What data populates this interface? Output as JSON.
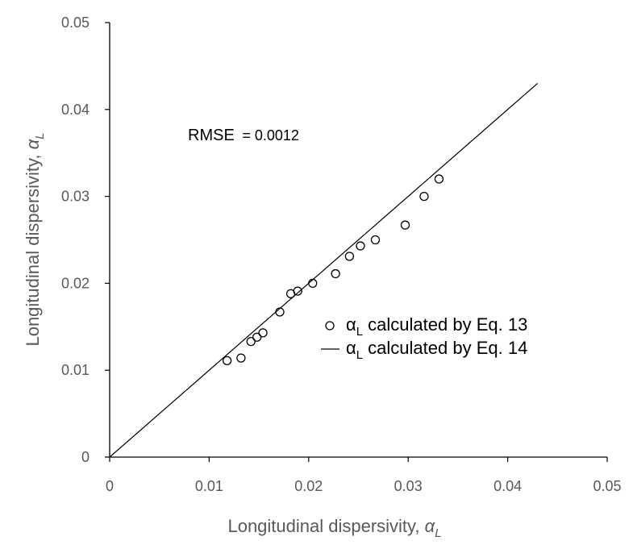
{
  "chart_data": {
    "type": "scatter",
    "title": "",
    "xlabel": "Longitudinal dispersivity, ",
    "xlabel_symbol": "α",
    "xlabel_sub": "L",
    "ylabel": "Longitudinal dispersivity, ",
    "ylabel_symbol": "α",
    "ylabel_sub": "L",
    "xlim": [
      0,
      0.05
    ],
    "ylim": [
      0,
      0.05
    ],
    "xticks": [
      0,
      0.01,
      0.02,
      0.03,
      0.04,
      0.05
    ],
    "yticks": [
      0,
      0.01,
      0.02,
      0.03,
      0.04,
      0.05
    ],
    "xtick_labels": [
      "0",
      "0.01",
      "0.02",
      "0.03",
      "0.04",
      "0.05"
    ],
    "ytick_labels": [
      "0",
      "0.01",
      "0.02",
      "0.03",
      "0.04",
      "0.05"
    ],
    "grid": false,
    "annotation": {
      "rmse_label": "RMSE",
      "rmse_value": "= 0.0012"
    },
    "legend": {
      "position": "center-right",
      "entries": [
        {
          "symbol": "α",
          "sub": "L",
          "text": " calculated by Eq. 13",
          "marker": "circle"
        },
        {
          "symbol": "α",
          "sub": "L",
          "text": " calculated by Eq. 14",
          "marker": "line"
        }
      ]
    },
    "series": [
      {
        "name": "αL calculated by Eq. 13",
        "kind": "scatter",
        "marker_color": "#000000",
        "x": [
          0.0118,
          0.0132,
          0.0142,
          0.0148,
          0.0154,
          0.0171,
          0.0182,
          0.0189,
          0.0204,
          0.0227,
          0.0241,
          0.0252,
          0.0267,
          0.0297,
          0.0316,
          0.0331
        ],
        "y": [
          0.0111,
          0.0114,
          0.0133,
          0.0138,
          0.0143,
          0.0167,
          0.0188,
          0.0191,
          0.02,
          0.0211,
          0.0231,
          0.0243,
          0.025,
          0.0267,
          0.03,
          0.032
        ]
      },
      {
        "name": "αL calculated by Eq. 14",
        "kind": "line",
        "line_color": "#000000",
        "x": [
          0,
          0.043
        ],
        "y": [
          0,
          0.043
        ]
      }
    ]
  }
}
